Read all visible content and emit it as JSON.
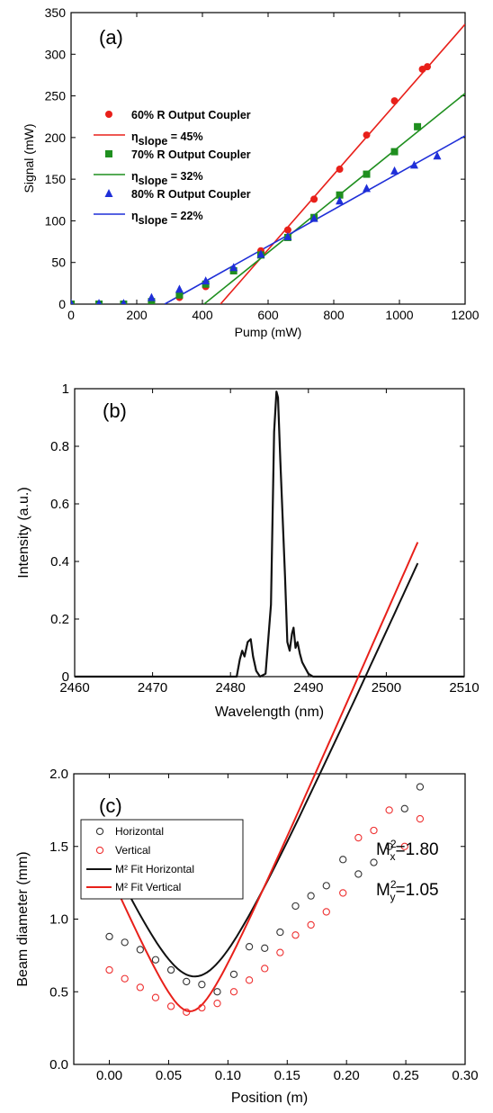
{
  "colors": {
    "red": "#e8201a",
    "green": "#1f8f1f",
    "blue": "#1f2fd8",
    "black": "#111111",
    "red_open": "#ee3030",
    "black_open": "#333333"
  },
  "chart_data": [
    {
      "panel_label": "(a)",
      "type": "scatter",
      "xlabel": "Pump (mW)",
      "ylabel": "Signal (mW)",
      "xlim": [
        0,
        1200
      ],
      "ylim": [
        0,
        350
      ],
      "xticks": [
        0,
        200,
        400,
        600,
        800,
        1000,
        1200
      ],
      "yticks": [
        0,
        50,
        100,
        150,
        200,
        250,
        300,
        350
      ],
      "legend_position": "middle-left",
      "series": [
        {
          "name": "60% R Output Coupler",
          "marker": "circle",
          "color": "red",
          "x": [
            0,
            85,
            160,
            245,
            330,
            410,
            495,
            578,
            660,
            740,
            818,
            900,
            985,
            1070,
            1085
          ],
          "y": [
            0,
            0,
            0,
            2,
            8,
            21,
            40,
            64,
            89,
            126,
            162,
            203,
            244,
            282,
            285
          ]
        },
        {
          "name": "70% R Output Coupler",
          "marker": "square",
          "color": "green",
          "x": [
            0,
            85,
            160,
            245,
            330,
            410,
            495,
            578,
            660,
            740,
            818,
            900,
            985,
            1055
          ],
          "y": [
            0,
            0,
            0,
            3,
            11,
            24,
            40,
            59,
            80,
            104,
            131,
            156,
            183,
            213
          ]
        },
        {
          "name": "80% R Output Coupler",
          "marker": "triangle",
          "color": "blue",
          "x": [
            0,
            85,
            160,
            245,
            330,
            410,
            495,
            578,
            660,
            740,
            818,
            900,
            985,
            1045,
            1115
          ],
          "y": [
            1,
            1,
            1,
            8,
            18,
            28,
            44,
            60,
            81,
            103,
            124,
            139,
            160,
            167,
            178
          ]
        }
      ],
      "fits": [
        {
          "label_main": "η",
          "label_sub": "slope",
          "label_value": " = 45%",
          "color": "red",
          "x": [
            455,
            1200
          ],
          "y": [
            0,
            336
          ]
        },
        {
          "label_main": "η",
          "label_sub": "slope",
          "label_value": " = 32%",
          "color": "green",
          "x": [
            405,
            1200
          ],
          "y": [
            0,
            253
          ]
        },
        {
          "label_main": "η",
          "label_sub": "slope",
          "label_value": " = 22%",
          "color": "blue",
          "x": [
            285,
            1200
          ],
          "y": [
            0,
            202
          ]
        }
      ]
    },
    {
      "panel_label": "(b)",
      "type": "line",
      "xlabel": "Wavelength (nm)",
      "ylabel": "Intensity (a.u.)",
      "xlim": [
        2460,
        2510
      ],
      "ylim": [
        0.0,
        1.0
      ],
      "xticks": [
        2460,
        2470,
        2480,
        2490,
        2500,
        2510
      ],
      "yticks": [
        0.0,
        0.2,
        0.4,
        0.6,
        0.8,
        1.0
      ],
      "series": [
        {
          "name": "",
          "color": "black",
          "x": [
            2460,
            2480.8,
            2481.2,
            2481.5,
            2481.8,
            2482.2,
            2482.6,
            2482.9,
            2483.3,
            2483.8,
            2484.5,
            2485.2,
            2485.6,
            2485.9,
            2486.1,
            2486.4,
            2486.7,
            2487.0,
            2487.3,
            2487.6,
            2487.9,
            2488.1,
            2488.35,
            2488.6,
            2488.9,
            2489.2,
            2489.6,
            2490.0,
            2490.6,
            2510
          ],
          "y": [
            0,
            0,
            0.06,
            0.09,
            0.07,
            0.12,
            0.13,
            0.07,
            0.02,
            0,
            0.01,
            0.25,
            0.85,
            0.99,
            0.97,
            0.75,
            0.55,
            0.35,
            0.12,
            0.09,
            0.15,
            0.17,
            0.1,
            0.12,
            0.08,
            0.05,
            0.03,
            0.01,
            0,
            0
          ]
        }
      ]
    },
    {
      "panel_label": "(c)",
      "type": "scatter",
      "xlabel": "Position (m)",
      "ylabel": "Beam diameter (mm)",
      "xlim": [
        -0.03,
        0.3
      ],
      "ylim": [
        0.0,
        2.0
      ],
      "xticks": [
        "0.00",
        "0.05",
        "0.10",
        "0.15",
        "0.20",
        "0.25",
        "0.30"
      ],
      "yticks": [
        "0.0",
        "0.5",
        "1.0",
        "1.5",
        "2.0"
      ],
      "legend_position": "upper-left",
      "series": [
        {
          "name": "Horizontal",
          "marker": "open-circle",
          "color": "black_open",
          "x": [
            0.0,
            0.013,
            0.026,
            0.039,
            0.052,
            0.065,
            0.078,
            0.091,
            0.105,
            0.118,
            0.131,
            0.144,
            0.157,
            0.17,
            0.183,
            0.197,
            0.21,
            0.223,
            0.236,
            0.249,
            0.262
          ],
          "y": [
            0.88,
            0.84,
            0.79,
            0.72,
            0.65,
            0.57,
            0.55,
            0.5,
            0.62,
            0.81,
            0.8,
            0.91,
            1.09,
            1.16,
            1.23,
            1.41,
            1.31,
            1.39,
            1.5,
            1.76,
            1.91
          ]
        },
        {
          "name": "Vertical",
          "marker": "open-circle",
          "color": "red_open",
          "x": [
            0.0,
            0.013,
            0.026,
            0.039,
            0.052,
            0.065,
            0.078,
            0.091,
            0.105,
            0.118,
            0.131,
            0.144,
            0.157,
            0.17,
            0.183,
            0.197,
            0.21,
            0.223,
            0.236,
            0.249,
            0.262
          ],
          "y": [
            0.65,
            0.59,
            0.53,
            0.46,
            0.4,
            0.36,
            0.39,
            0.42,
            0.5,
            0.58,
            0.66,
            0.77,
            0.89,
            0.96,
            1.05,
            1.18,
            1.56,
            1.61,
            1.75,
            1.5,
            1.69
          ]
        }
      ],
      "fits": [
        {
          "label": "M² Fit Horizontal",
          "color": "black",
          "w0": 0.605,
          "z0": 0.072,
          "zr": 0.0335
        },
        {
          "label": "M² Fit Vertical",
          "color": "red",
          "w0": 0.365,
          "z0": 0.068,
          "zr": 0.0196
        }
      ],
      "annotations": [
        {
          "base": "M",
          "sup": "2",
          "sub": "x",
          "value": "=1.80"
        },
        {
          "base": "M",
          "sup": "2",
          "sub": "y",
          "value": "=1.05"
        }
      ]
    }
  ]
}
